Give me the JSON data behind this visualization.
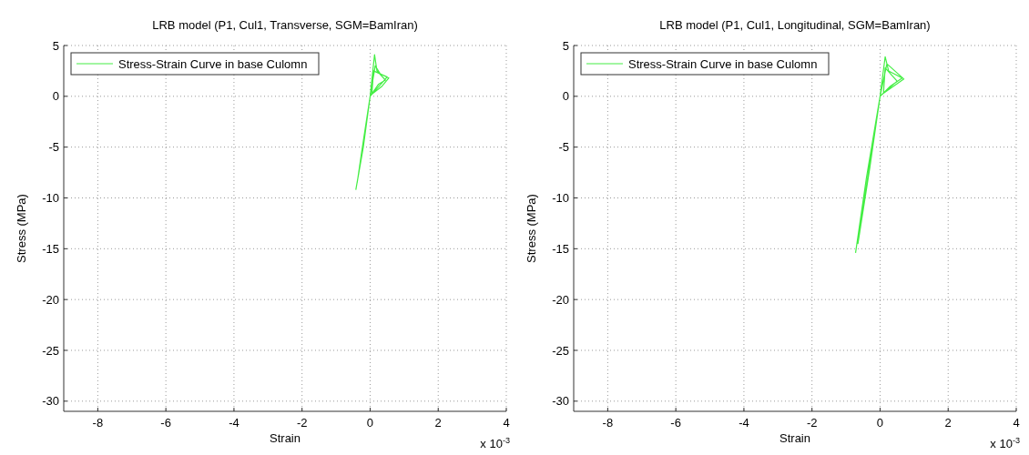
{
  "chart_data": [
    {
      "type": "line",
      "title": "LRB model (P1, Cul1, Transverse, SGM=BamIran)",
      "xlabel": "Strain",
      "ylabel": "Stress (MPa)",
      "annotations": [
        "x 10$^{-3}$"
      ],
      "xlim": [
        -9,
        4
      ],
      "ylim": [
        -31,
        5
      ],
      "xticks": [
        -8,
        -6,
        -4,
        -2,
        0,
        2,
        4
      ],
      "yticks": [
        5,
        0,
        -5,
        -10,
        -15,
        -20,
        -25,
        -30
      ],
      "grid": true,
      "legend": "top left",
      "series": [
        {
          "name": "Stress-Strain Curve in base Culomn",
          "color": "#44ee44",
          "x": [
            -0.42,
            -0.2,
            0,
            0.13,
            0.2,
            0.45,
            0.25,
            0,
            0.15,
            0.3,
            0.55,
            0.35,
            0.05,
            0.1,
            0.5,
            0,
            -0.25,
            -0.38
          ],
          "values": [
            -9.2,
            -5,
            0,
            4.1,
            2.5,
            1.6,
            1.2,
            0,
            3,
            2.2,
            1.8,
            1,
            0.2,
            2.5,
            1.9,
            0,
            -5.5,
            -8.5
          ]
        }
      ]
    },
    {
      "type": "line",
      "title": "LRB model (P1, Cul1, Longitudinal, SGM=BamIran)",
      "xlabel": "Strain",
      "ylabel": "Stress (MPa)",
      "annotations": [
        "x 10$^{-3}$"
      ],
      "xlim": [
        -9,
        4
      ],
      "ylim": [
        -31,
        5
      ],
      "xticks": [
        -8,
        -6,
        -4,
        -2,
        0,
        2,
        4
      ],
      "yticks": [
        5,
        0,
        -5,
        -10,
        -15,
        -20,
        -25,
        -30
      ],
      "grid": true,
      "legend": "top left",
      "series": [
        {
          "name": "Stress-Strain Curve in base Culomn",
          "color": "#44ee44",
          "x": [
            -0.72,
            -0.4,
            0,
            0.15,
            0.25,
            0.65,
            0.3,
            0,
            0.2,
            0.7,
            0.1,
            0.15,
            0.5,
            0,
            -0.3,
            -0.65,
            -0.5,
            0
          ],
          "values": [
            -15.4,
            -8,
            0,
            3.9,
            2.5,
            1.8,
            1,
            0,
            3.2,
            1.7,
            0.3,
            2.8,
            1.5,
            0,
            -7,
            -14.5,
            -11,
            0
          ]
        }
      ]
    }
  ]
}
